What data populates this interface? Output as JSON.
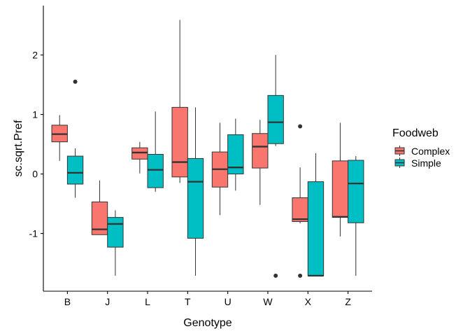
{
  "chart_data": {
    "type": "boxplot",
    "xlabel": "Genotype",
    "ylabel": "sc.sqrt.Pref",
    "ylim": [
      -1.97,
      2.83
    ],
    "yticks": [
      -1,
      0,
      1,
      2
    ],
    "categories": [
      "B",
      "J",
      "L",
      "T",
      "U",
      "W",
      "X",
      "Z"
    ],
    "legend": {
      "title": "Foodweb",
      "position": "right",
      "entries": [
        "Complex",
        "Simple"
      ]
    },
    "grid": false,
    "series": [
      {
        "name": "Complex",
        "color": "#F8766D",
        "boxes": [
          {
            "min": 0.22,
            "q1": 0.54,
            "median": 0.67,
            "q3": 0.82,
            "max": 0.99,
            "outliers": []
          },
          {
            "min": -1.02,
            "q1": -1.02,
            "median": -0.93,
            "q3": -0.47,
            "max": -0.11,
            "outliers": []
          },
          {
            "min": 0.01,
            "q1": 0.25,
            "median": 0.36,
            "q3": 0.44,
            "max": 0.54,
            "outliers": []
          },
          {
            "min": -0.15,
            "q1": -0.05,
            "median": 0.2,
            "q3": 1.12,
            "max": 2.59,
            "outliers": []
          },
          {
            "min": -0.69,
            "q1": -0.22,
            "median": 0.08,
            "q3": 0.37,
            "max": 0.86,
            "outliers": []
          },
          {
            "min": -0.52,
            "q1": 0.1,
            "median": 0.46,
            "q3": 0.68,
            "max": 0.91,
            "outliers": []
          },
          {
            "min": -0.83,
            "q1": -0.8,
            "median": -0.76,
            "q3": -0.4,
            "max": 0.11,
            "outliers": [
              0.8,
              -1.71
            ]
          },
          {
            "min": -1.05,
            "q1": -0.73,
            "median": -0.72,
            "q3": 0.22,
            "max": 0.86,
            "outliers": []
          }
        ]
      },
      {
        "name": "Simple",
        "color": "#00BFC4",
        "boxes": [
          {
            "min": -0.4,
            "q1": -0.17,
            "median": 0.02,
            "q3": 0.3,
            "max": 0.43,
            "outliers": [
              1.55
            ]
          },
          {
            "min": -1.71,
            "q1": -1.23,
            "median": -0.84,
            "q3": -0.73,
            "max": -0.61,
            "outliers": []
          },
          {
            "min": -0.3,
            "q1": -0.23,
            "median": 0.07,
            "q3": 0.33,
            "max": 1.05,
            "outliers": []
          },
          {
            "min": -1.71,
            "q1": -1.08,
            "median": -0.13,
            "q3": 0.26,
            "max": 1.12,
            "outliers": []
          },
          {
            "min": -0.28,
            "q1": 0.0,
            "median": 0.11,
            "q3": 0.66,
            "max": 0.93,
            "outliers": []
          },
          {
            "min": 0.47,
            "q1": 0.51,
            "median": 0.87,
            "q3": 1.32,
            "max": 2.0,
            "outliers": [
              -1.71
            ]
          },
          {
            "min": -1.71,
            "q1": -1.71,
            "median": -1.71,
            "q3": -0.13,
            "max": 0.35,
            "outliers": []
          },
          {
            "min": -1.71,
            "q1": -0.82,
            "median": -0.16,
            "q3": 0.23,
            "max": 0.3,
            "outliers": []
          }
        ]
      }
    ]
  }
}
